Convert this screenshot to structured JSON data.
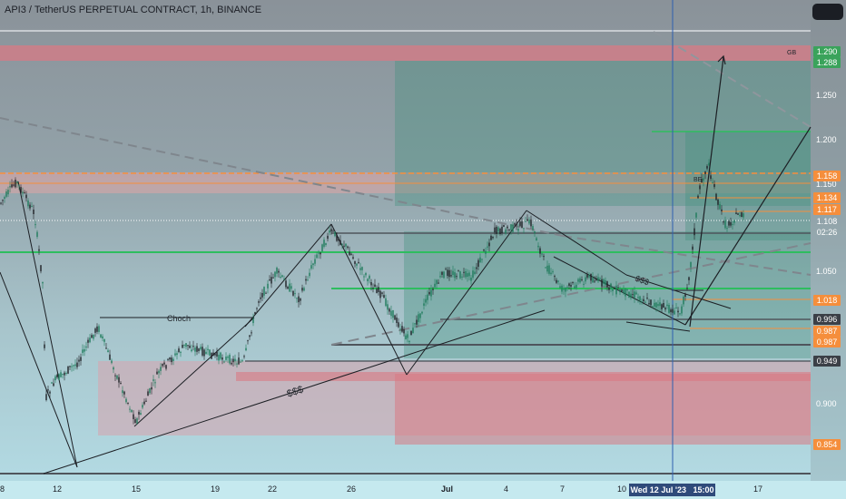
{
  "header": {
    "title": "API3 / TetherUS PERPETUAL CONTRACT, 1h, BINANCE"
  },
  "chart_data": {
    "type": "candlestick",
    "symbol": "API3 / TetherUS PERPETUAL CONTRACT",
    "timeframe": "1h",
    "exchange": "BINANCE",
    "y_ticks": [
      "1.250",
      "1.200",
      "1.150",
      "1.050",
      "0.900"
    ],
    "x_ticks": [
      "8",
      "12",
      "15",
      "19",
      "22",
      "26",
      "Jul",
      "4",
      "7",
      "10",
      "17"
    ],
    "ylim": [
      0.83,
      1.31
    ],
    "crosshair_date": "Wed 12 Jul '23",
    "crosshair_time": "15:00",
    "current_price": "1.108",
    "countdown": "02:26",
    "price_tags": [
      {
        "label": "1.290",
        "color": "#3aa35b"
      },
      {
        "label": "1.288",
        "color": "#3aa35b"
      },
      {
        "label": "1.158",
        "color": "#f58e3c"
      },
      {
        "label": "1.134",
        "color": "#f58e3c"
      },
      {
        "label": "1.117",
        "color": "#f58e3c"
      },
      {
        "label": "1.018",
        "color": "#f58e3c"
      },
      {
        "label": "0.996",
        "color": "#3b3f47"
      },
      {
        "label": "0.987",
        "color": "#f58e3c"
      },
      {
        "label": "0.987",
        "color": "#f58e3c"
      },
      {
        "label": "0.949",
        "color": "#3b3f47"
      },
      {
        "label": "0.854",
        "color": "#f58e3c"
      }
    ],
    "annotations": [
      "Choch",
      "$$$",
      "$$$",
      "BE",
      "GB"
    ],
    "colors": {
      "bull": "#1d7a5a",
      "bear": "#1d1f24",
      "supply": "#e0707a",
      "demand": "#3f8f7a",
      "orange": "#f58e3c",
      "green": "#2ebd5f"
    }
  }
}
